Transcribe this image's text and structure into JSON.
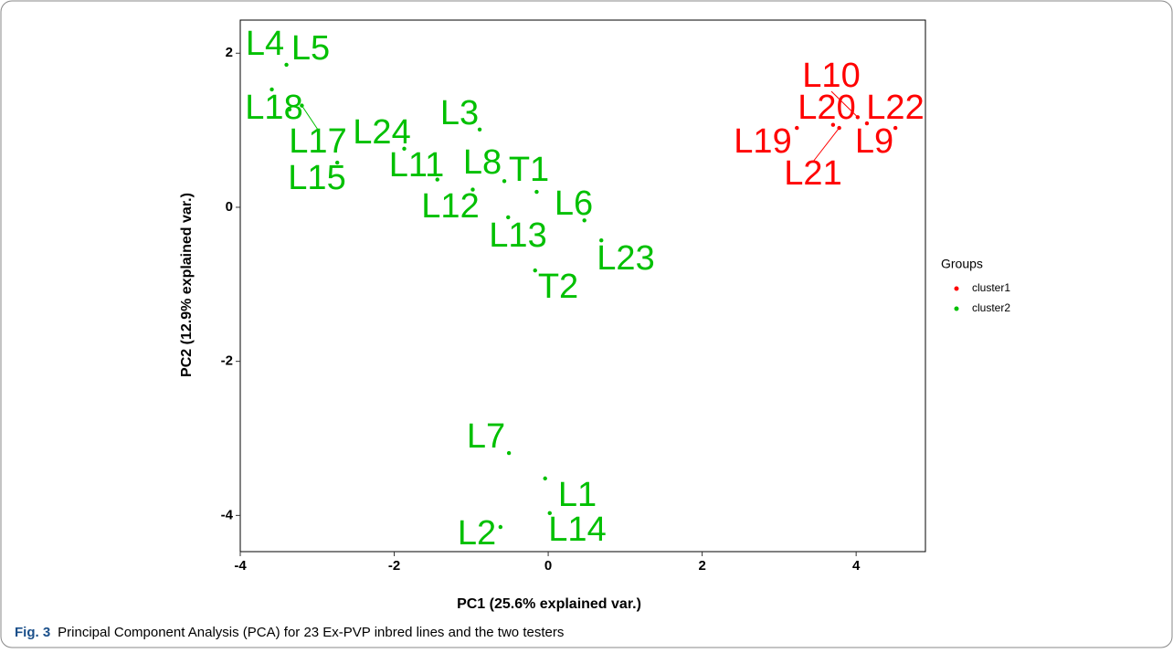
{
  "chart_data": {
    "type": "scatter",
    "xlabel": "PC1 (25.6% explained var.)",
    "ylabel": "PC2 (12.9% explained var.)",
    "xlim": [
      -4,
      4.9
    ],
    "ylim": [
      -4.47,
      2.43
    ],
    "xticks": [
      -4,
      -2,
      0,
      2,
      4
    ],
    "yticks": [
      -4,
      -2,
      0,
      2
    ],
    "legend_title": "Groups",
    "series": [
      {
        "name": "cluster1",
        "color": "#ff0000",
        "labels": [
          "L19",
          "L10",
          "L20",
          "L22",
          "L9",
          "L21"
        ],
        "x": [
          3.23,
          4.02,
          3.7,
          4.51,
          4.14,
          3.78
        ],
        "y": [
          1.03,
          1.17,
          1.07,
          1.03,
          1.09,
          1.03
        ]
      },
      {
        "name": "cluster2",
        "color": "#00c000",
        "labels": [
          "L4",
          "L5",
          "L18",
          "L17",
          "L15",
          "L24",
          "L11",
          "L3",
          "L12",
          "L8",
          "T1",
          "L13",
          "L6",
          "L23",
          "T2",
          "L7",
          "L1",
          "L14",
          "L2"
        ],
        "x": [
          -3.59,
          -3.4,
          -3.36,
          -3.2,
          -2.74,
          -1.87,
          -1.44,
          -0.89,
          -0.98,
          -0.57,
          -0.15,
          -0.52,
          0.47,
          0.69,
          -0.17,
          -0.51,
          -0.04,
          0.02,
          -0.62
        ],
        "y": [
          1.53,
          1.85,
          1.27,
          1.32,
          0.58,
          0.76,
          0.36,
          1.01,
          0.23,
          0.34,
          0.2,
          -0.13,
          -0.17,
          -0.43,
          -0.82,
          -3.19,
          -3.52,
          -3.97,
          -4.15
        ]
      }
    ]
  },
  "caption": {
    "label": "Fig. 3",
    "text": "Principal Component Analysis (PCA) for 23 Ex-PVP inbred lines and the two testers"
  }
}
